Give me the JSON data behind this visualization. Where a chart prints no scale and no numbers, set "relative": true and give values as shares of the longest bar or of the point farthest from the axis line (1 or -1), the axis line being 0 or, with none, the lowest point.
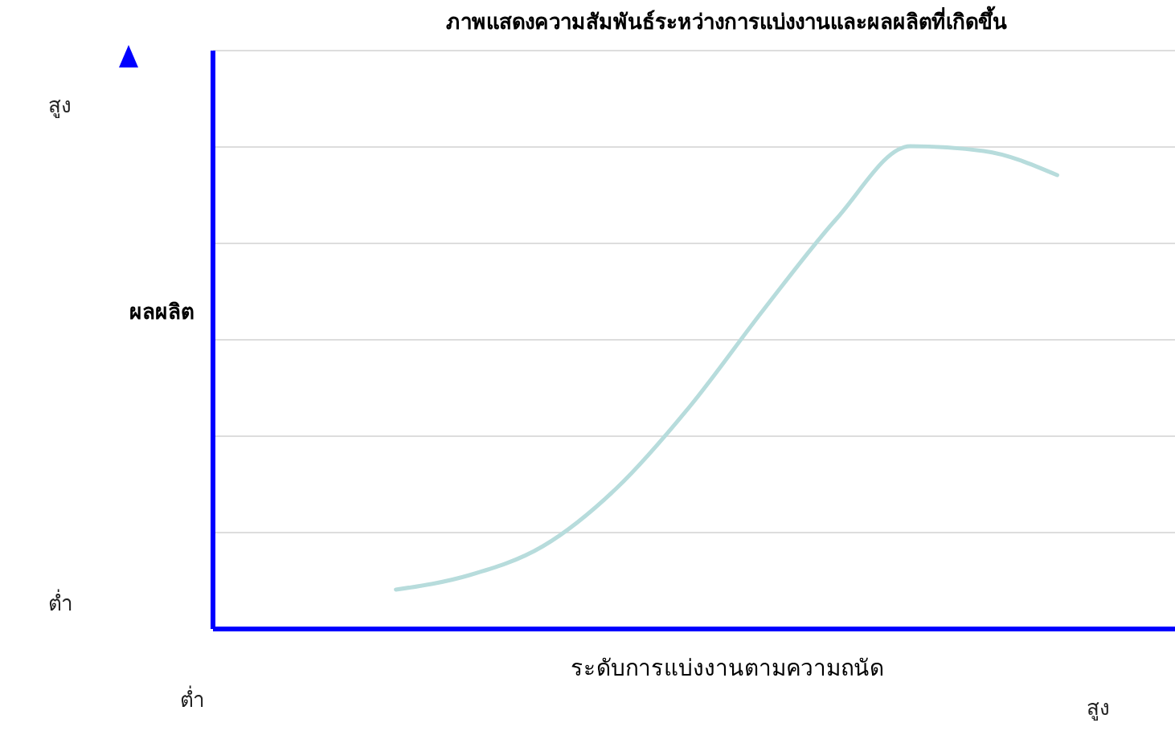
{
  "chart_data": {
    "type": "line",
    "title": "ภาพแสดงความสัมพันธ์ระหว่างการแบ่งงานและผลผลิตที่เกิดขึ้น",
    "xlabel": "ระดับการแบ่งงานตามความถนัด",
    "ylabel": "ผลผลิต",
    "relative": true,
    "grid": "y",
    "marker": "none",
    "categories": [
      null,
      null,
      null,
      null,
      null,
      null,
      null,
      null,
      null,
      null,
      null,
      null,
      null,
      null
    ],
    "series": [
      {
        "color": "#b7dcdc",
        "values": [
          null,
          null,
          0.08,
          0.11,
          0.17,
          0.29,
          0.46,
          0.66,
          0.85,
          1,
          0.99,
          0.94,
          null,
          null
        ]
      }
    ],
    "annotations": [
      "สูง",
      "ต่ำ",
      "ต่ำ",
      "สูง"
    ]
  }
}
